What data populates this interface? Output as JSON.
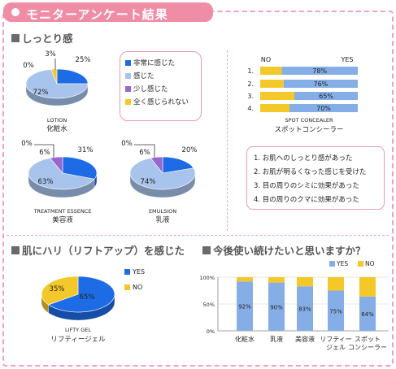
{
  "title": "モニターアンケート結果",
  "sections": {
    "moisture": "しっとり感",
    "lift": "肌にハリ（リフトアップ）を感じた",
    "continue": "今後使い続けたいと思いますか？"
  },
  "colors": {
    "blue": "#1e6be6",
    "light_blue": "#a8c4ec",
    "purple": "#9a66cc",
    "yellow": "#f5c829",
    "accent_pink": "#ef8ca6"
  },
  "moisture_legend": [
    "非常に感じた",
    "感じた",
    "少し感じた",
    "全く感じられない"
  ],
  "findings": [
    "1. お肌へのしっとり感があった",
    "2. お肌が明るくなった感じを受けた",
    "3. 目の周りのシミに効果があった",
    "4. 目の周りのクマに効果があった"
  ],
  "spot_legend": {
    "left": "NO",
    "right": "YES"
  },
  "spot_caption_en": "SPOT CONCEALER",
  "spot_caption_jp": "スポットコンシーラー",
  "lift_legend": [
    "YES",
    "NO"
  ],
  "continue_legend": [
    "YES",
    "NO"
  ],
  "chart_data": [
    {
      "type": "pie",
      "name_en": "LOTION",
      "name_jp": "化粧水",
      "categories": [
        "非常に感じた",
        "感じた",
        "少し感じた",
        "全く感じられない"
      ],
      "values": [
        25,
        72,
        0,
        3
      ]
    },
    {
      "type": "pie",
      "name_en": "TREATMENT ESSENCE",
      "name_jp": "美容液",
      "categories": [
        "非常に感じた",
        "感じた",
        "少し感じた",
        "全く感じられない"
      ],
      "values": [
        31,
        63,
        6,
        0
      ]
    },
    {
      "type": "pie",
      "name_en": "EMULSION",
      "name_jp": "乳液",
      "categories": [
        "非常に感じた",
        "感じた",
        "少し感じた",
        "全く感じられない"
      ],
      "values": [
        20,
        74,
        6,
        0
      ]
    },
    {
      "type": "bar",
      "orientation": "horizontal-stacked",
      "name_en": "SPOT CONCEALER",
      "name_jp": "スポットコンシーラー",
      "categories": [
        "1.",
        "2.",
        "3.",
        "4."
      ],
      "series": [
        {
          "name": "NO",
          "values": [
            22,
            24,
            35,
            30
          ]
        },
        {
          "name": "YES",
          "values": [
            78,
            76,
            65,
            70
          ]
        }
      ],
      "labels": [
        "78%",
        "76%",
        "65%",
        "70%"
      ]
    },
    {
      "type": "pie",
      "name_en": "LIFTY GEL",
      "name_jp": "リフティージェル",
      "categories": [
        "YES",
        "NO"
      ],
      "values": [
        65,
        35
      ]
    },
    {
      "type": "bar",
      "orientation": "vertical-stacked",
      "categories": [
        "化粧水",
        "乳液",
        "美容液",
        "リフティージェル",
        "スポットコンシーラー"
      ],
      "series": [
        {
          "name": "YES",
          "values": [
            92,
            90,
            83,
            75,
            64
          ]
        },
        {
          "name": "NO",
          "values": [
            8,
            10,
            17,
            25,
            36
          ]
        }
      ],
      "yticks": [
        "100%",
        "50%",
        "0%"
      ],
      "ylim": [
        0,
        100
      ]
    }
  ]
}
